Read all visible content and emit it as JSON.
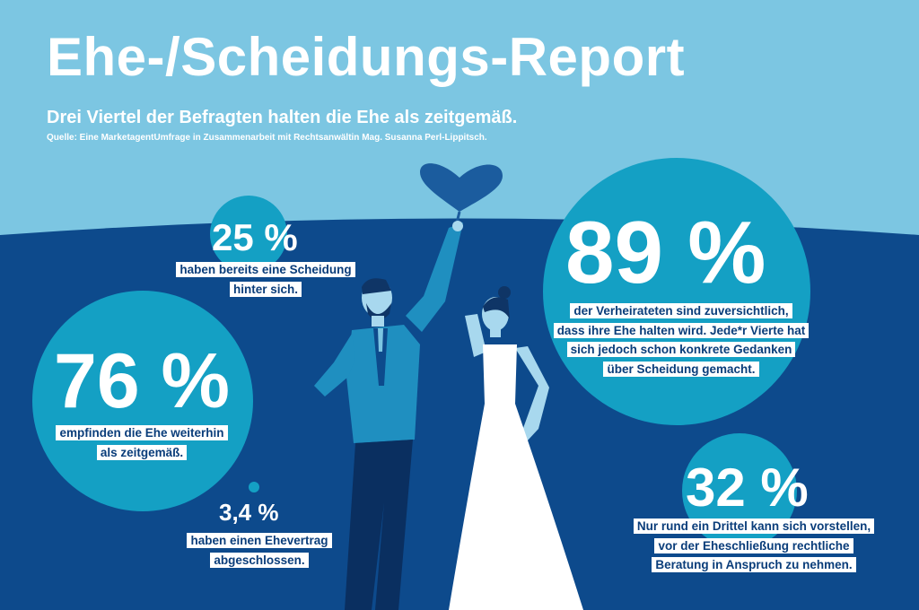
{
  "header": {
    "title": "Ehe-/Scheidungs-Report",
    "subtitle": "Drei Viertel der Befragten halten die Ehe als zeitgemäß.",
    "source": "Quelle: Eine MarketagentUmfrage in Zusammenarbeit mit Rechtsanwältin Mag. Susanna Perl-Lippitsch."
  },
  "stats": {
    "divorce": {
      "value": "25 %",
      "lines": [
        "haben bereits eine Scheidung",
        "hinter sich."
      ]
    },
    "modern": {
      "value": "76 %",
      "lines": [
        "empfinden die Ehe weiterhin",
        "als zeitgemäß."
      ]
    },
    "contract": {
      "value": "3,4 %",
      "lines": [
        "haben einen Ehevertrag",
        "abgeschlossen."
      ]
    },
    "confident": {
      "value": "89 %",
      "lines": [
        "der Verheirateten sind zuversichtlich,",
        "dass ihre Ehe halten wird. Jede*r Vierte hat",
        "sich jedoch schon konkrete Gedanken",
        "über Scheidung gemacht."
      ]
    },
    "advice": {
      "value": "32 %",
      "lines": [
        "Nur rund ein Drittel kann sich vorstellen,",
        "vor der Eheschließung rechtliche",
        "Beratung in Anspruch zu nehmen."
      ]
    }
  },
  "colors": {
    "sky": "#7cc6e2",
    "ground": "#0d4a8c",
    "circle": "#14a0c4",
    "label_text": "#0a3d7a",
    "heart": "#1b5c9e"
  },
  "illustration": "couple-with-heart-balloon"
}
